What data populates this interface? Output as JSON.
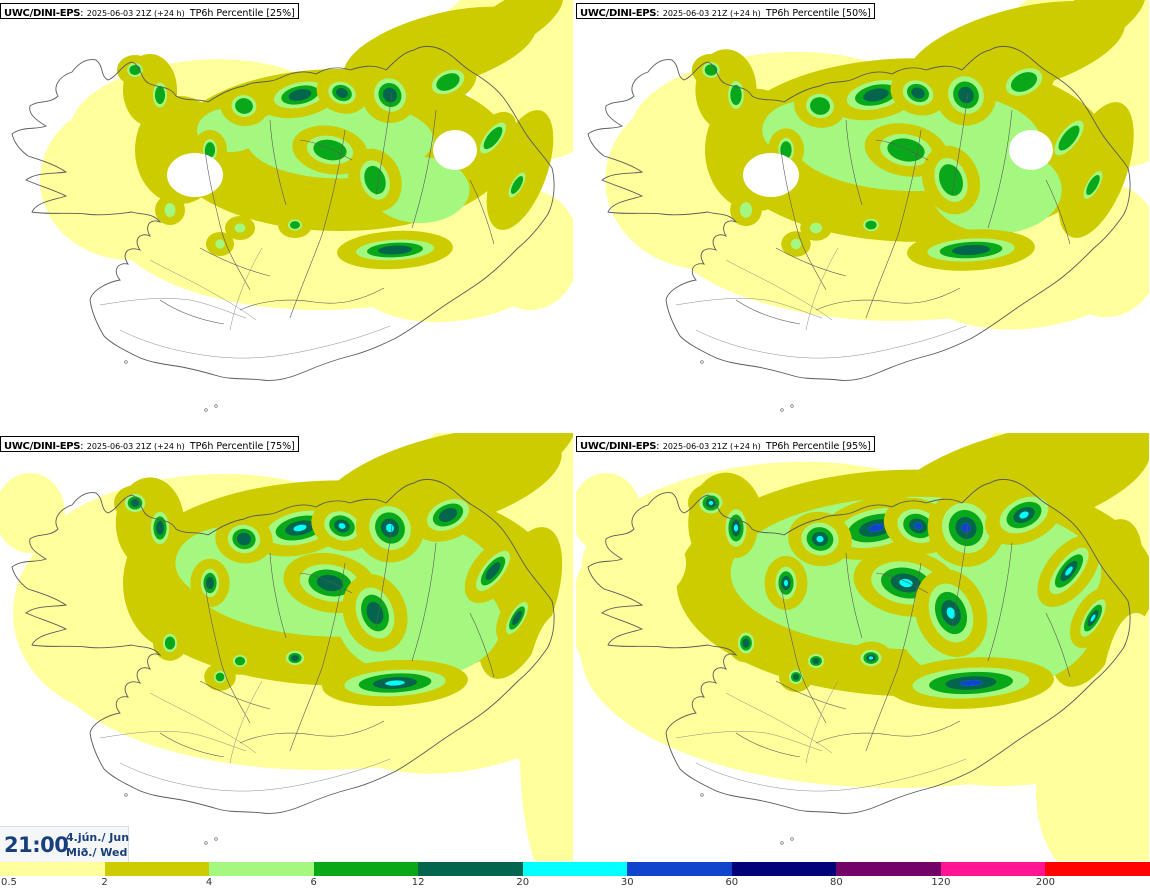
{
  "panels": [
    {
      "model": "UWC/DINI-EPS",
      "run": "2025-06-03 21Z (+24 h)",
      "variable": "TP6h Percentile [25%]",
      "level": 0
    },
    {
      "model": "UWC/DINI-EPS",
      "run": "2025-06-03 21Z (+24 h)",
      "variable": "TP6h Percentile [50%]",
      "level": 1
    },
    {
      "model": "UWC/DINI-EPS",
      "run": "2025-06-03 21Z (+24 h)",
      "variable": "TP6h Percentile [75%]",
      "level": 2
    },
    {
      "model": "UWC/DINI-EPS",
      "run": "2025-06-03 21Z (+24 h)",
      "variable": "TP6h Percentile [95%]",
      "level": 3
    }
  ],
  "valid_time": {
    "time": "21:00",
    "date_line1": "4.jún./ Jun",
    "date_line2": "Mið./ Wed"
  },
  "legend": {
    "ticks": [
      "0.5",
      "2",
      "4",
      "6",
      "12",
      "20",
      "30",
      "60",
      "80",
      "120",
      "200"
    ],
    "colors": [
      "#ffff9c",
      "#cccc00",
      "#a4f880",
      "#09a71a",
      "#03664c",
      "#05ffff",
      "#1144cc",
      "#030178",
      "#730368",
      "#ff1493",
      "#ff0202"
    ]
  },
  "palette": {
    "land_line": "#5a5a5a",
    "road_line": "#8a8a8a"
  }
}
